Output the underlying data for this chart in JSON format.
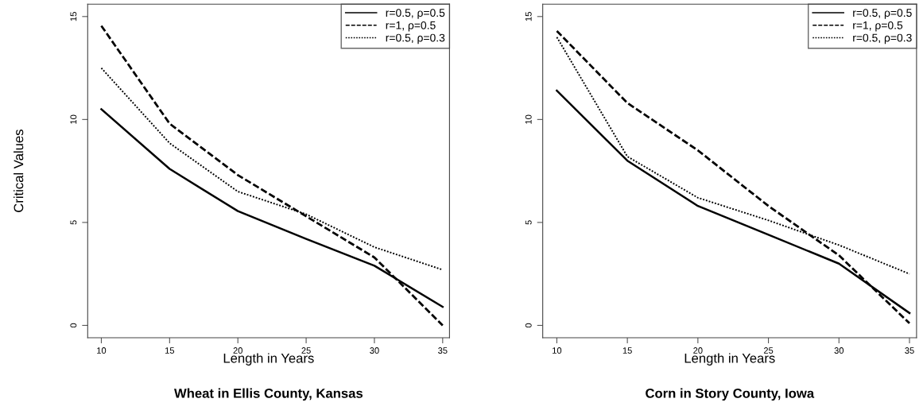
{
  "chart_data": [
    {
      "type": "line",
      "title": "Wheat in Ellis County, Kansas",
      "xlabel": "Length in Years",
      "ylabel": "Critical Values",
      "x": [
        10,
        15,
        20,
        25,
        30,
        35
      ],
      "xlim": [
        9,
        35.5
      ],
      "ylim": [
        -0.6,
        15.6
      ],
      "xticks": [
        10,
        15,
        20,
        25,
        30,
        35
      ],
      "yticks": [
        0,
        5,
        10,
        15
      ],
      "legend": "top right",
      "grid": false,
      "series": [
        {
          "name": "r=0.5, ρ=0.5",
          "color": "#000000",
          "line_style": "solid",
          "values": [
            10.5,
            7.6,
            5.55,
            4.2,
            2.9,
            0.9
          ]
        },
        {
          "name": "r=1, ρ=0.5",
          "color": "#000000",
          "line_style": "dashed",
          "values": [
            14.55,
            9.8,
            7.3,
            5.3,
            3.3,
            0.0
          ]
        },
        {
          "name": "r=0.5, ρ=0.3",
          "color": "#000000",
          "line_style": "dotted",
          "values": [
            12.5,
            8.85,
            6.5,
            5.4,
            3.8,
            2.7
          ]
        }
      ]
    },
    {
      "type": "line",
      "title": "Corn in Story County, Iowa",
      "xlabel": "Length in Years",
      "x": [
        10,
        15,
        20,
        25,
        30,
        35
      ],
      "xlim": [
        9,
        35.5
      ],
      "ylim": [
        -0.6,
        15.6
      ],
      "xticks": [
        10,
        15,
        20,
        25,
        30,
        35
      ],
      "yticks": [
        0,
        5,
        10,
        15
      ],
      "legend": "top right",
      "grid": false,
      "series": [
        {
          "name": "r=0.5, ρ=0.5",
          "color": "#000000",
          "line_style": "solid",
          "values": [
            11.4,
            8.0,
            5.8,
            4.4,
            3.0,
            0.6
          ]
        },
        {
          "name": "r=1, ρ=0.5",
          "color": "#000000",
          "line_style": "dashed",
          "values": [
            14.3,
            10.8,
            8.5,
            5.8,
            3.4,
            0.1
          ]
        },
        {
          "name": "r=0.5, ρ=0.3",
          "color": "#000000",
          "line_style": "dotted",
          "values": [
            14.0,
            8.2,
            6.2,
            5.1,
            3.9,
            2.5
          ]
        }
      ]
    }
  ]
}
